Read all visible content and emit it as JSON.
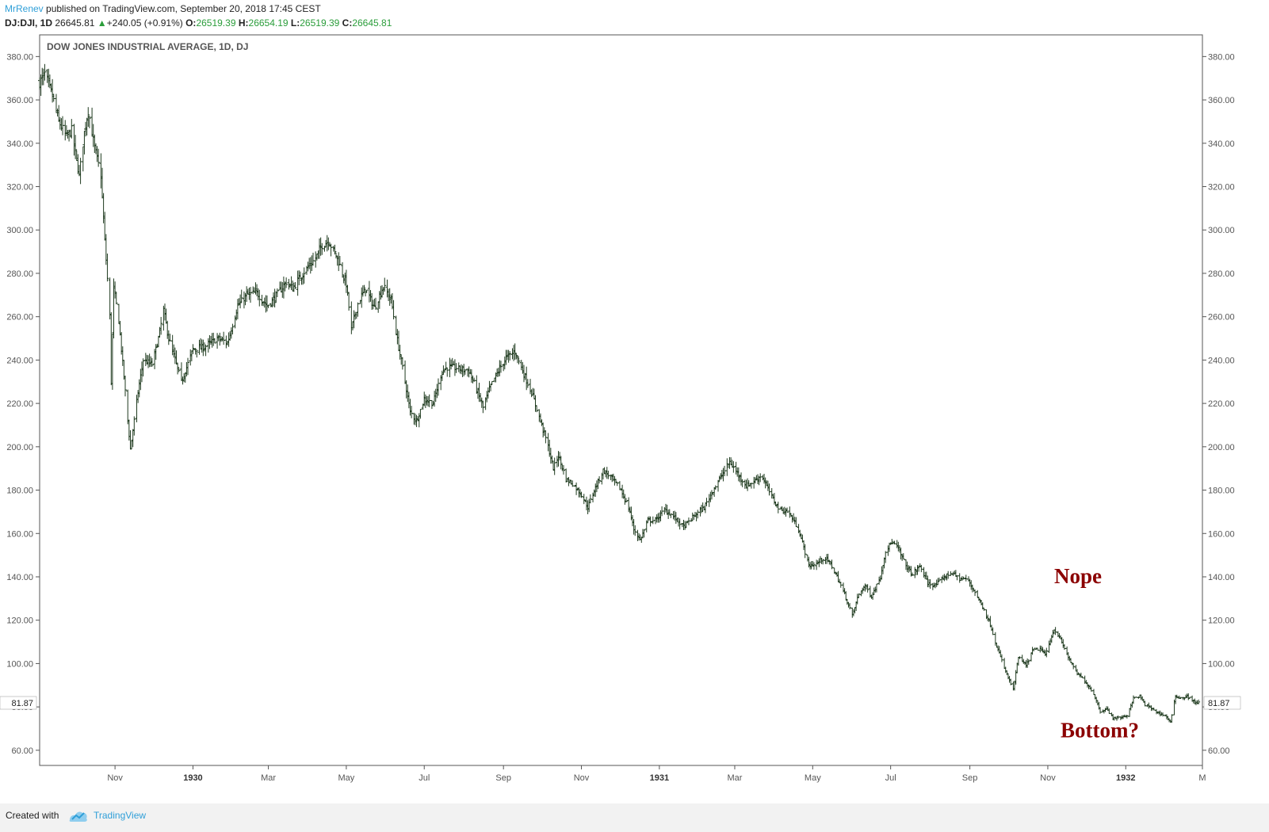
{
  "header": {
    "author": "MrRenev",
    "published": " published on TradingView.com, September 20, 2018 17:45 CEST",
    "symbol": "DJ:DJI, 1D",
    "last": "26645.81",
    "change_arrow": "▲",
    "change": "+240.05 (+0.91%)",
    "open_label": "O:",
    "open": "26519.39",
    "high_label": "H:",
    "high": "26654.19",
    "low_label": "L:",
    "low": "26519.39",
    "close_label": "C:",
    "close": "26645.81"
  },
  "footer": {
    "created": "Created with",
    "brand": "TradingView"
  },
  "colors": {
    "bars": "#1e3a1e",
    "annotation": "#8b0000",
    "link": "#2f9fd8",
    "up": "#2a9d3a"
  },
  "chart_data": {
    "type": "ohlc",
    "title": "DOW JONES INDUSTRIAL AVERAGE, 1D, DJ",
    "ylim": [
      53,
      390
    ],
    "yticks": [
      60,
      80,
      100,
      120,
      140,
      160,
      180,
      200,
      220,
      240,
      260,
      280,
      300,
      320,
      340,
      360,
      380
    ],
    "ytick_labels": [
      "60.00",
      "80.00",
      "100.00",
      "120.00",
      "140.00",
      "160.00",
      "180.00",
      "200.00",
      "220.00",
      "240.00",
      "260.00",
      "280.00",
      "300.00",
      "320.00",
      "340.00",
      "360.00",
      "380.00"
    ],
    "last_price_label": "81.87",
    "last_price": 81.87,
    "xlim": [
      "1929-09-03",
      "1932-03-01"
    ],
    "xticks": [
      {
        "label": "Nov",
        "date": "1929-11-01",
        "bold": false
      },
      {
        "label": "1930",
        "date": "1930-01-01",
        "bold": true
      },
      {
        "label": "Mar",
        "date": "1930-03-01",
        "bold": false
      },
      {
        "label": "May",
        "date": "1930-05-01",
        "bold": false
      },
      {
        "label": "Jul",
        "date": "1930-07-01",
        "bold": false
      },
      {
        "label": "Sep",
        "date": "1930-09-01",
        "bold": false
      },
      {
        "label": "Nov",
        "date": "1930-11-01",
        "bold": false
      },
      {
        "label": "1931",
        "date": "1931-01-01",
        "bold": true
      },
      {
        "label": "Mar",
        "date": "1931-03-01",
        "bold": false
      },
      {
        "label": "May",
        "date": "1931-05-01",
        "bold": false
      },
      {
        "label": "Jul",
        "date": "1931-07-01",
        "bold": false
      },
      {
        "label": "Sep",
        "date": "1931-09-01",
        "bold": false
      },
      {
        "label": "Nov",
        "date": "1931-11-01",
        "bold": false
      },
      {
        "label": "1932",
        "date": "1932-01-01",
        "bold": true
      },
      {
        "label": "M",
        "date": "1932-03-01",
        "bold": false
      }
    ],
    "anchors": [
      [
        "1929-09-03",
        368
      ],
      [
        "1929-09-07",
        372
      ],
      [
        "1929-09-13",
        362
      ],
      [
        "1929-09-18",
        350
      ],
      [
        "1929-09-24",
        343
      ],
      [
        "1929-09-28",
        346
      ],
      [
        "1929-10-04",
        325
      ],
      [
        "1929-10-08",
        345
      ],
      [
        "1929-10-11",
        355
      ],
      [
        "1929-10-16",
        338
      ],
      [
        "1929-10-21",
        325
      ],
      [
        "1929-10-24",
        295
      ],
      [
        "1929-10-28",
        260
      ],
      [
        "1929-10-29",
        230
      ],
      [
        "1929-10-31",
        273
      ],
      [
        "1929-11-04",
        258
      ],
      [
        "1929-11-08",
        232
      ],
      [
        "1929-11-13",
        199
      ],
      [
        "1929-11-19",
        225
      ],
      [
        "1929-11-23",
        240
      ],
      [
        "1929-11-30",
        238
      ],
      [
        "1929-12-05",
        250
      ],
      [
        "1929-12-09",
        263
      ],
      [
        "1929-12-13",
        250
      ],
      [
        "1929-12-18",
        240
      ],
      [
        "1929-12-23",
        230
      ],
      [
        "1930-01-01",
        245
      ],
      [
        "1930-01-10",
        246
      ],
      [
        "1930-01-20",
        250
      ],
      [
        "1930-01-28",
        248
      ],
      [
        "1930-02-05",
        265
      ],
      [
        "1930-02-12",
        270
      ],
      [
        "1930-02-20",
        271
      ],
      [
        "1930-02-28",
        265
      ],
      [
        "1930-03-05",
        268
      ],
      [
        "1930-03-15",
        276
      ],
      [
        "1930-03-20",
        273
      ],
      [
        "1930-03-28",
        280
      ],
      [
        "1930-04-07",
        287
      ],
      [
        "1930-04-12",
        293
      ],
      [
        "1930-04-17",
        295
      ],
      [
        "1930-04-24",
        287
      ],
      [
        "1930-05-01",
        275
      ],
      [
        "1930-05-05",
        254
      ],
      [
        "1930-05-10",
        266
      ],
      [
        "1930-05-16",
        273
      ],
      [
        "1930-05-23",
        264
      ],
      [
        "1930-05-30",
        274
      ],
      [
        "1930-06-05",
        268
      ],
      [
        "1930-06-10",
        249
      ],
      [
        "1930-06-16",
        230
      ],
      [
        "1930-06-20",
        216
      ],
      [
        "1930-06-25",
        212
      ],
      [
        "1930-07-01",
        222
      ],
      [
        "1930-07-08",
        220
      ],
      [
        "1930-07-15",
        235
      ],
      [
        "1930-07-20",
        237
      ],
      [
        "1930-07-28",
        236
      ],
      [
        "1930-08-05",
        235
      ],
      [
        "1930-08-12",
        225
      ],
      [
        "1930-08-16",
        218
      ],
      [
        "1930-08-22",
        228
      ],
      [
        "1930-08-28",
        235
      ],
      [
        "1930-09-03",
        241
      ],
      [
        "1930-09-10",
        244
      ],
      [
        "1930-09-16",
        235
      ],
      [
        "1930-09-23",
        225
      ],
      [
        "1930-09-30",
        212
      ],
      [
        "1930-10-06",
        200
      ],
      [
        "1930-10-10",
        190
      ],
      [
        "1930-10-14",
        196
      ],
      [
        "1930-10-20",
        185
      ],
      [
        "1930-10-25",
        183
      ],
      [
        "1930-11-01",
        178
      ],
      [
        "1930-11-06",
        172
      ],
      [
        "1930-11-11",
        180
      ],
      [
        "1930-11-18",
        189
      ],
      [
        "1930-11-24",
        186
      ],
      [
        "1930-12-02",
        180
      ],
      [
        "1930-12-09",
        170
      ],
      [
        "1930-12-12",
        162
      ],
      [
        "1930-12-17",
        157
      ],
      [
        "1930-12-23",
        166
      ],
      [
        "1930-12-29",
        166
      ],
      [
        "1931-01-05",
        171
      ],
      [
        "1931-01-12",
        168
      ],
      [
        "1931-01-20",
        163
      ],
      [
        "1931-01-28",
        168
      ],
      [
        "1931-02-05",
        172
      ],
      [
        "1931-02-12",
        180
      ],
      [
        "1931-02-20",
        188
      ],
      [
        "1931-02-25",
        193
      ],
      [
        "1931-03-04",
        187
      ],
      [
        "1931-03-10",
        182
      ],
      [
        "1931-03-16",
        184
      ],
      [
        "1931-03-22",
        187
      ],
      [
        "1931-03-29",
        178
      ],
      [
        "1931-04-05",
        171
      ],
      [
        "1931-04-12",
        170
      ],
      [
        "1931-04-20",
        162
      ],
      [
        "1931-04-28",
        145
      ],
      [
        "1931-05-04",
        146
      ],
      [
        "1931-05-10",
        149
      ],
      [
        "1931-05-15",
        146
      ],
      [
        "1931-05-20",
        140
      ],
      [
        "1931-05-26",
        132
      ],
      [
        "1931-06-01",
        122
      ],
      [
        "1931-06-06",
        132
      ],
      [
        "1931-06-11",
        136
      ],
      [
        "1931-06-16",
        131
      ],
      [
        "1931-06-23",
        140
      ],
      [
        "1931-06-27",
        152
      ],
      [
        "1931-07-02",
        156
      ],
      [
        "1931-07-07",
        153
      ],
      [
        "1931-07-12",
        146
      ],
      [
        "1931-07-18",
        141
      ],
      [
        "1931-07-24",
        145
      ],
      [
        "1931-07-30",
        137
      ],
      [
        "1931-08-05",
        136
      ],
      [
        "1931-08-12",
        140
      ],
      [
        "1931-08-18",
        142
      ],
      [
        "1931-08-24",
        139
      ],
      [
        "1931-08-30",
        139
      ],
      [
        "1931-09-05",
        133
      ],
      [
        "1931-09-12",
        125
      ],
      [
        "1931-09-17",
        118
      ],
      [
        "1931-09-22",
        108
      ],
      [
        "1931-09-28",
        98
      ],
      [
        "1931-10-02",
        92
      ],
      [
        "1931-10-05",
        88
      ],
      [
        "1931-10-09",
        103
      ],
      [
        "1931-10-15",
        99
      ],
      [
        "1931-10-20",
        106
      ],
      [
        "1931-10-26",
        107
      ],
      [
        "1931-10-30",
        104
      ],
      [
        "1931-11-06",
        116
      ],
      [
        "1931-11-11",
        111
      ],
      [
        "1931-11-17",
        103
      ],
      [
        "1931-11-23",
        96
      ],
      [
        "1931-11-30",
        92
      ],
      [
        "1931-12-07",
        86
      ],
      [
        "1931-12-12",
        78
      ],
      [
        "1931-12-17",
        79
      ],
      [
        "1931-12-22",
        75
      ],
      [
        "1931-12-28",
        75
      ],
      [
        "1932-01-02",
        76
      ],
      [
        "1932-01-07",
        84
      ],
      [
        "1932-01-12",
        85
      ],
      [
        "1932-01-16",
        81
      ],
      [
        "1932-01-22",
        79
      ],
      [
        "1932-01-27",
        77
      ],
      [
        "1932-02-01",
        76
      ],
      [
        "1932-02-05",
        73
      ],
      [
        "1932-02-09",
        85
      ],
      [
        "1932-02-14",
        84
      ],
      [
        "1932-02-18",
        85
      ],
      [
        "1932-02-24",
        82
      ],
      [
        "1932-02-27",
        82
      ]
    ],
    "annotations": [
      {
        "text": "Nope",
        "x": "1931-11-06",
        "y": 137
      },
      {
        "text": "Bottom?",
        "x": "1931-11-11",
        "y": 66
      }
    ]
  }
}
